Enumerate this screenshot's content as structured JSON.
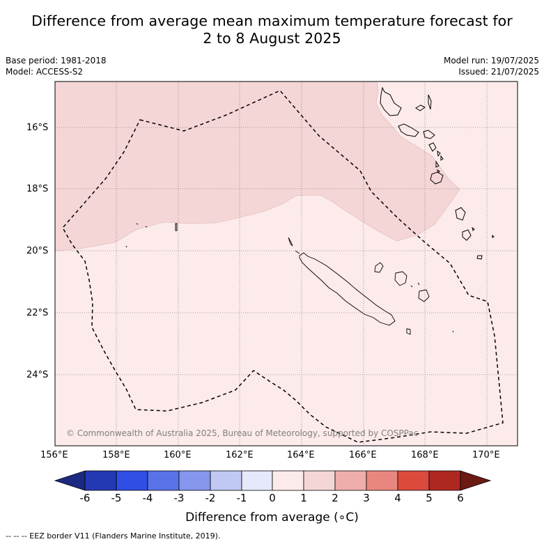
{
  "title": {
    "line1": "Difference from average mean maximum temperature forecast for",
    "line2": "2 to 8 August 2025"
  },
  "meta_left": {
    "base_period": "Base period: 1981-2018",
    "model": "Model: ACCESS-S2"
  },
  "meta_right": {
    "model_run": "Model run: 19/07/2025",
    "issued": "Issued: 21/07/2025"
  },
  "map": {
    "lat_labels": [
      "16°S",
      "18°S",
      "20°S",
      "22°S",
      "24°S"
    ],
    "lon_labels": [
      "156°E",
      "158°E",
      "160°E",
      "162°E",
      "164°E",
      "166°E",
      "168°E",
      "170°E"
    ],
    "copyright": "© Commonwealth of Australia 2025, Bureau of Meteorology, supported by COSPPac",
    "regions": [
      {
        "anomaly_range": "1 to 2",
        "color": "#f5d6d6"
      },
      {
        "anomaly_range": "0 to 1",
        "color": "#fcebea"
      }
    ]
  },
  "colorbar": {
    "ticks": [
      "-6",
      "-5",
      "-4",
      "-3",
      "-2",
      "-1",
      "0",
      "1",
      "2",
      "3",
      "4",
      "5",
      "6"
    ],
    "colors": [
      "#1b2a80",
      "#2339b3",
      "#2f4ee3",
      "#5a72e8",
      "#8596ec",
      "#c0c8f4",
      "#e6e9fa",
      "#fcebea",
      "#f5d6d6",
      "#efaeab",
      "#e8877f",
      "#dc4a3e",
      "#ae2821",
      "#6c1a14"
    ],
    "label": "Difference from average (∘C)"
  },
  "footnote": "--  --  -- EEZ border V11 (Flanders Marine Institute, 2019)."
}
